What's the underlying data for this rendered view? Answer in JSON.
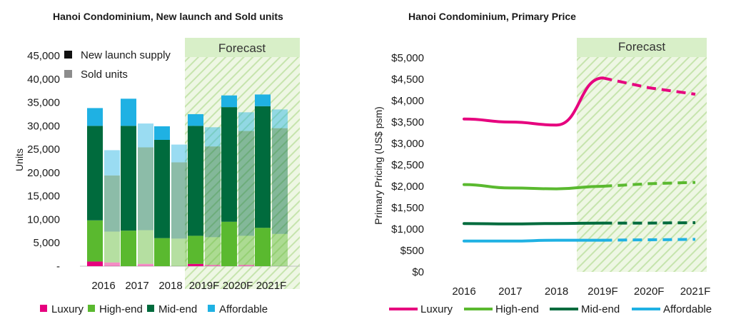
{
  "chart_data": [
    {
      "type": "bar",
      "title": "Hanoi Condominium, New launch and Sold units",
      "ylabel": "Units",
      "ylim": [
        0,
        45000
      ],
      "yticks": [
        "-",
        "5,000",
        "10,000",
        "15,000",
        "20,000",
        "25,000",
        "30,000",
        "35,000",
        "40,000",
        "45,000"
      ],
      "categories": [
        "2016",
        "2017",
        "2018",
        "2019F",
        "2020F",
        "2021F"
      ],
      "forecast_label": "Forecast",
      "forecast_from": "2019F",
      "segment_names": [
        "Luxury",
        "High-end",
        "Mid-end",
        "Affordable"
      ],
      "segment_colors": [
        "#e6007e",
        "#5ab92f",
        "#006b3d",
        "#1fb1e3"
      ],
      "groups": [
        {
          "name": "New launch supply",
          "style": "solid",
          "values": {
            "Luxury": [
              1000,
              0,
              0,
              500,
              0,
              0
            ],
            "High-end": [
              8800,
              7600,
              6000,
              6000,
              9500,
              8200
            ],
            "Mid-end": [
              20200,
              22400,
              21000,
              23500,
              24500,
              26000
            ],
            "Affordable": [
              3800,
              5800,
              2900,
              2500,
              2500,
              2500
            ]
          }
        },
        {
          "name": "Sold units",
          "style": "translucent",
          "values": {
            "Luxury": [
              800,
              500,
              0,
              300,
              300,
              0
            ],
            "High-end": [
              6600,
              7200,
              5900,
              5900,
              6200,
              6900
            ],
            "Mid-end": [
              12000,
              17700,
              16300,
              19400,
              22400,
              22600
            ],
            "Affordable": [
              5400,
              5100,
              3800,
              4100,
              4000,
              4000
            ]
          }
        }
      ],
      "legend": [
        "Luxury",
        "High-end",
        "Mid-end",
        "Affordable"
      ]
    },
    {
      "type": "line",
      "title": "Hanoi Condominium, Primary Price",
      "ylabel": "Primary Pricing (US$ psm)",
      "ylim": [
        0,
        5000
      ],
      "yticks": [
        "$0",
        "$500",
        "$1,000",
        "$1,500",
        "$2,000",
        "$2,500",
        "$3,000",
        "$3,500",
        "$4,000",
        "$4,500",
        "$5,000"
      ],
      "x": [
        "2016",
        "2017",
        "2018",
        "2019F",
        "2020F",
        "2021F"
      ],
      "forecast_label": "Forecast",
      "series": [
        {
          "name": "Luxury",
          "color": "#e6007e",
          "values": [
            3570,
            3500,
            3430,
            4530,
            4300,
            4150
          ]
        },
        {
          "name": "High-end",
          "color": "#5ab92f",
          "values": [
            2040,
            1960,
            1940,
            2000,
            2060,
            2090
          ]
        },
        {
          "name": "Mid-end",
          "color": "#006b3d",
          "values": [
            1130,
            1120,
            1130,
            1140,
            1140,
            1150
          ]
        },
        {
          "name": "Affordable",
          "color": "#1fb1e3",
          "values": [
            720,
            720,
            740,
            740,
            750,
            760
          ]
        }
      ]
    }
  ]
}
